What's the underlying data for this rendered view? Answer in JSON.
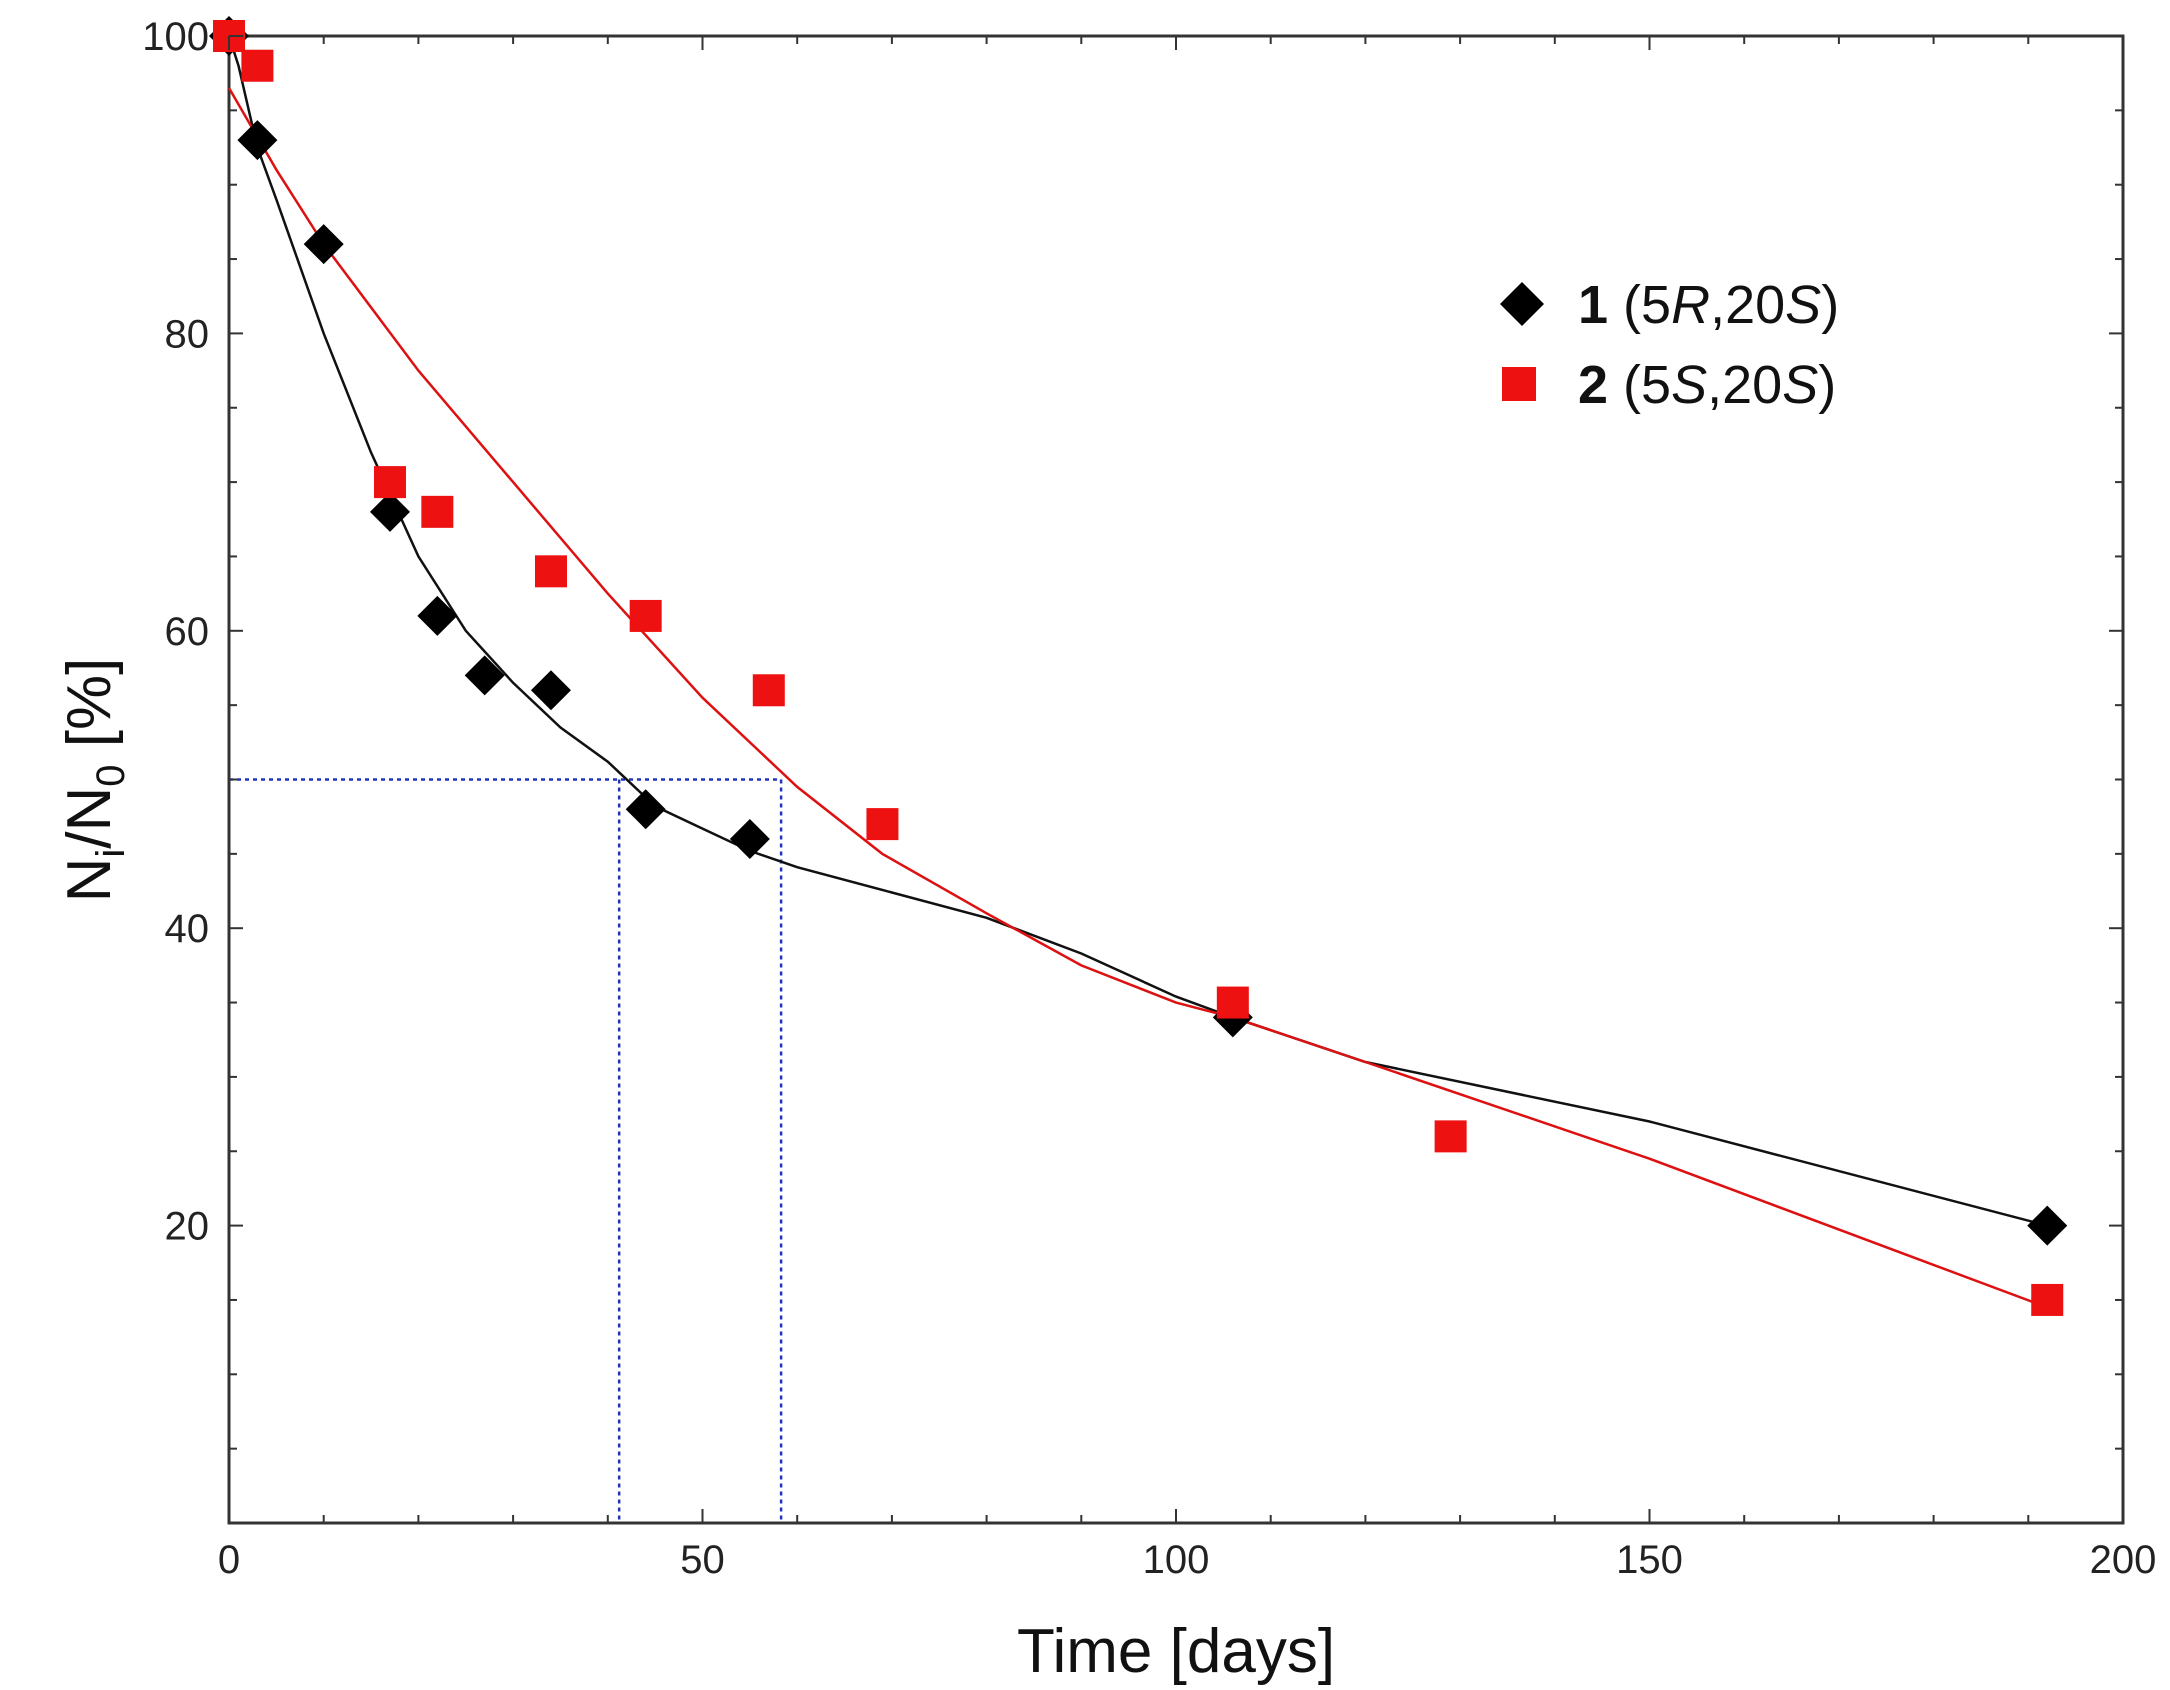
{
  "chart_data": {
    "type": "scatter",
    "title": "",
    "xlabel": "Time [days]",
    "ylabel": {
      "main": "N",
      "sub1": "i",
      "mid": "/N",
      "sub2": "0",
      "tail": " [%]"
    },
    "xlim": [
      0,
      200
    ],
    "ylim": [
      0,
      100
    ],
    "x_ticks": [
      0,
      50,
      100,
      150,
      200
    ],
    "y_ticks": [
      20,
      40,
      60,
      80,
      100
    ],
    "x_tick_labels": [
      "0",
      "50",
      "100",
      "150",
      "200"
    ],
    "y_tick_labels": [
      "20",
      "40",
      "60",
      "80",
      "100"
    ],
    "grid": false,
    "legend_position": "top-right",
    "series": [
      {
        "name": "1",
        "label_parts": [
          "1",
          " (5",
          "R",
          ",20",
          "S",
          ")"
        ],
        "marker": "diamond",
        "color": "#000000",
        "points": [
          [
            0,
            100
          ],
          [
            3,
            93
          ],
          [
            10,
            86
          ],
          [
            17,
            68
          ],
          [
            22,
            61
          ],
          [
            27,
            57
          ],
          [
            34,
            56
          ],
          [
            44,
            48
          ],
          [
            55,
            46
          ],
          [
            106,
            34
          ],
          [
            192,
            20
          ]
        ],
        "fit": [
          [
            0,
            100
          ],
          [
            1,
            98
          ],
          [
            3,
            92.5
          ],
          [
            5,
            89
          ],
          [
            10,
            80
          ],
          [
            15,
            72
          ],
          [
            20,
            65
          ],
          [
            25,
            60
          ],
          [
            30,
            56.5
          ],
          [
            35,
            53.5
          ],
          [
            40,
            51.2
          ],
          [
            45,
            48.2
          ],
          [
            50,
            46.7
          ],
          [
            55,
            45.2
          ],
          [
            60,
            44.1
          ],
          [
            70,
            42.4
          ],
          [
            80,
            40.7
          ],
          [
            90,
            38.3
          ],
          [
            100,
            35.4
          ],
          [
            106,
            34
          ],
          [
            120,
            31
          ],
          [
            150,
            27
          ],
          [
            192,
            20
          ]
        ]
      },
      {
        "name": "2",
        "label_parts": [
          "2",
          " (5",
          "S",
          ",20",
          "S",
          ")"
        ],
        "marker": "square",
        "color": "#ee1111",
        "points": [
          [
            0,
            100
          ],
          [
            3,
            98
          ],
          [
            17,
            70
          ],
          [
            22,
            68
          ],
          [
            34,
            64
          ],
          [
            44,
            61
          ],
          [
            57,
            56
          ],
          [
            69,
            47
          ],
          [
            106,
            35
          ],
          [
            129,
            26
          ],
          [
            192,
            15
          ]
        ],
        "fit": [
          [
            0,
            96.5
          ],
          [
            5,
            91
          ],
          [
            10,
            86
          ],
          [
            20,
            77.5
          ],
          [
            30,
            70
          ],
          [
            40,
            62.5
          ],
          [
            50,
            55.5
          ],
          [
            60,
            49.5
          ],
          [
            69,
            45
          ],
          [
            80,
            41
          ],
          [
            90,
            37.5
          ],
          [
            100,
            35
          ],
          [
            106,
            34
          ],
          [
            120,
            31
          ],
          [
            150,
            24.5
          ],
          [
            192,
            14.5
          ]
        ]
      }
    ],
    "reference_lines": {
      "y_level": 50,
      "x_values": [
        41.2,
        58.3
      ],
      "color": "#2233bb"
    }
  }
}
